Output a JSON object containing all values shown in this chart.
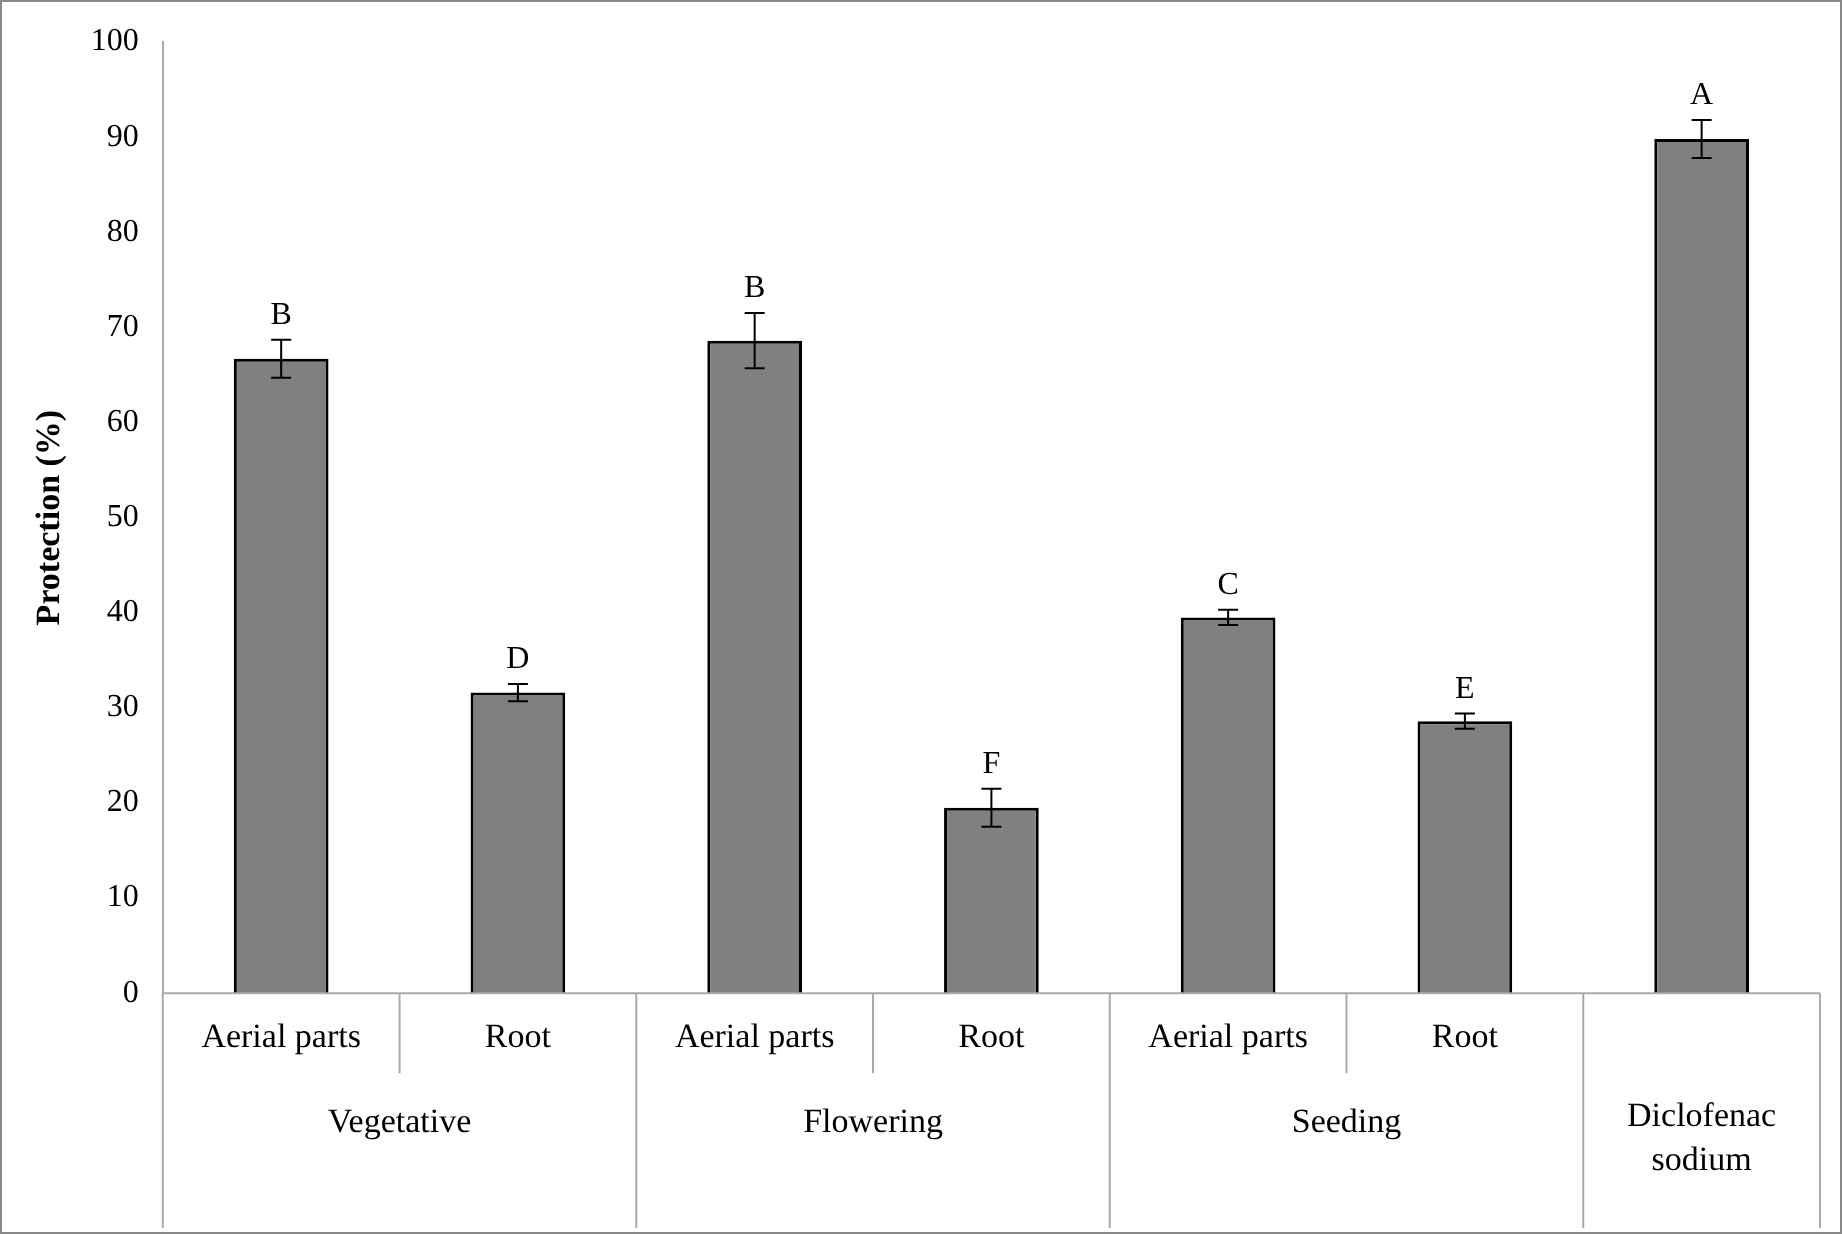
{
  "chart_data": {
    "type": "bar",
    "ylabel": "Protection (%)",
    "categories": [
      "Aerial parts",
      "Root",
      "Aerial parts",
      "Root",
      "Aerial parts",
      "Root",
      null
    ],
    "values": [
      66.7,
      31.6,
      68.6,
      19.5,
      39.5,
      28.6,
      89.8
    ],
    "errors": [
      2.0,
      0.9,
      2.9,
      2.0,
      0.8,
      0.8,
      2.0
    ],
    "value_labels": [
      "B",
      "D",
      "B",
      "F",
      "C",
      "E",
      "A"
    ],
    "color": "#808080",
    "ylim": [
      0,
      100
    ],
    "yticks": [
      0,
      10,
      20,
      30,
      40,
      50,
      60,
      70,
      80,
      90,
      100
    ],
    "annotations": [
      "Vegetative",
      "Flowering",
      "Seeding",
      "Diclofenac sodium"
    ],
    "grid": false,
    "legend": false
  }
}
